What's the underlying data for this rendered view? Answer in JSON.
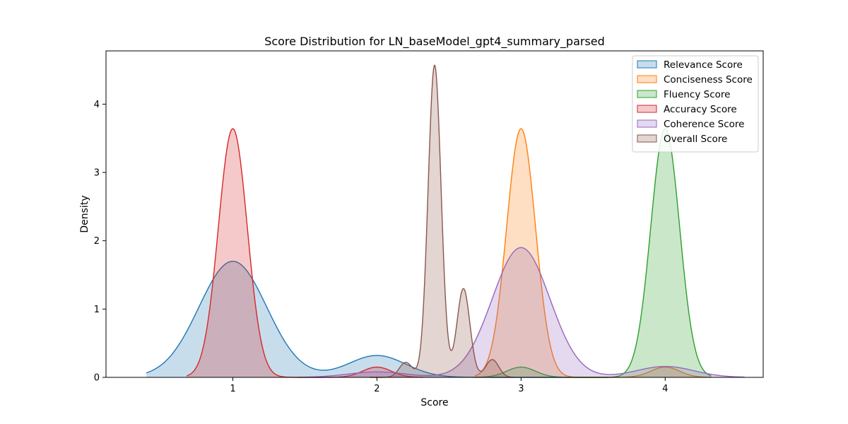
{
  "chart_data": {
    "type": "area",
    "title": "Score Distribution for LN_baseModel_gpt4_summary_parsed",
    "xlabel": "Score",
    "ylabel": "Density",
    "xlim": [
      0.12,
      4.68
    ],
    "ylim": [
      0,
      4.78
    ],
    "x_ticks": [
      1,
      2,
      3,
      4
    ],
    "x_tick_labels": [
      "1",
      "2",
      "3",
      "4"
    ],
    "y_ticks": [
      0,
      1,
      2,
      3,
      4
    ],
    "y_tick_labels": [
      "0",
      "1",
      "2",
      "3",
      "4"
    ],
    "grid": false,
    "legend_position": "top-right",
    "series": [
      {
        "name": "Relevance Score",
        "color": "#1f77b4",
        "range": [
          0.4,
          3.6
        ],
        "components": [
          {
            "mu": 1.0,
            "sigma": 0.235,
            "height": 1.7
          },
          {
            "mu": 2.0,
            "sigma": 0.2,
            "height": 0.32
          }
        ]
      },
      {
        "name": "Conciseness Score",
        "color": "#ff7f0e",
        "range": [
          2.68,
          4.32
        ],
        "components": [
          {
            "mu": 3.0,
            "sigma": 0.1,
            "height": 3.64
          },
          {
            "mu": 4.0,
            "sigma": 0.1,
            "height": 0.15
          }
        ]
      },
      {
        "name": "Fluency Score",
        "color": "#2ca02c",
        "range": [
          2.68,
          4.32
        ],
        "components": [
          {
            "mu": 3.0,
            "sigma": 0.1,
            "height": 0.15
          },
          {
            "mu": 4.0,
            "sigma": 0.1,
            "height": 3.64
          }
        ]
      },
      {
        "name": "Accuracy Score",
        "color": "#d62728",
        "range": [
          0.68,
          2.32
        ],
        "components": [
          {
            "mu": 1.0,
            "sigma": 0.1,
            "height": 3.64
          },
          {
            "mu": 2.0,
            "sigma": 0.1,
            "height": 0.15
          }
        ]
      },
      {
        "name": "Coherence Score",
        "color": "#9467bd",
        "range": [
          1.45,
          4.55
        ],
        "components": [
          {
            "mu": 2.0,
            "sigma": 0.2,
            "height": 0.08
          },
          {
            "mu": 3.0,
            "sigma": 0.2,
            "height": 1.9
          },
          {
            "mu": 4.0,
            "sigma": 0.2,
            "height": 0.16
          }
        ]
      },
      {
        "name": "Overall Score",
        "color": "#8c564b",
        "range": [
          1.95,
          2.95
        ],
        "components": [
          {
            "mu": 2.2,
            "sigma": 0.045,
            "height": 0.22
          },
          {
            "mu": 2.4,
            "sigma": 0.045,
            "height": 4.57
          },
          {
            "mu": 2.6,
            "sigma": 0.045,
            "height": 1.3
          },
          {
            "mu": 2.8,
            "sigma": 0.045,
            "height": 0.26
          }
        ]
      }
    ]
  }
}
